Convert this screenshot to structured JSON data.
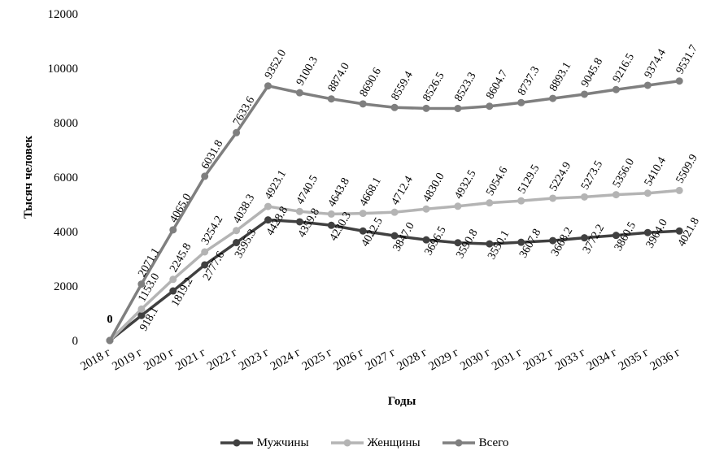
{
  "chart_data": {
    "type": "line",
    "xlabel": "Годы",
    "ylabel": "Тысяч человек",
    "ylim": [
      0,
      12000
    ],
    "yticks": [
      "0",
      "2000",
      "4000",
      "6000",
      "8000",
      "10000",
      "12000"
    ],
    "ytick_values": [
      0,
      2000,
      4000,
      6000,
      8000,
      10000,
      12000
    ],
    "categories": [
      "2018 г",
      "2019 г",
      "2020 г",
      "2021 г",
      "2022 г",
      "2023 г",
      "2024 г",
      "2025 г",
      "2026 г",
      "2027 г",
      "2028 г",
      "2029 г",
      "2030 г",
      "2031 г",
      "2032 г",
      "2033 г",
      "2034 г",
      "2035 г",
      "2036 г"
    ],
    "series": [
      {
        "name": "Мужчины",
        "color": "#404040",
        "values": [
          0,
          918.1,
          1819.2,
          2777.6,
          3595.3,
          4428.8,
          4359.8,
          4230.3,
          4022.5,
          3847.0,
          3696.5,
          3590.8,
          3550.1,
          3607.8,
          3668.2,
          3772.2,
          3860.5,
          3964.0,
          4021.8
        ],
        "labels": [
          "0",
          "918.1",
          "1819.2",
          "2777.6",
          "3595.3",
          "4428.8",
          "4359.8",
          "4230.3",
          "4022.5",
          "3847.0",
          "3696.5",
          "3590.8",
          "3550.1",
          "3607.8",
          "3668.2",
          "3772.2",
          "3860.5",
          "3964.0",
          "4021.8"
        ]
      },
      {
        "name": "Женщины",
        "color": "#b4b4b4",
        "values": [
          0,
          1153.0,
          2245.8,
          3254.2,
          4038.3,
          4923.1,
          4740.5,
          4643.8,
          4668.1,
          4712.4,
          4830.0,
          4932.5,
          5054.6,
          5129.5,
          5224.9,
          5273.5,
          5356.0,
          5410.4,
          5509.9
        ],
        "labels": [
          "",
          "1153.0",
          "2245.8",
          "3254.2",
          "4038.3",
          "4923.1",
          "4740.5",
          "4643.8",
          "4668.1",
          "4712.4",
          "4830.0",
          "4932.5",
          "5054.6",
          "5129.5",
          "5224.9",
          "5273.5",
          "5356.0",
          "5410.4",
          "5509.9"
        ]
      },
      {
        "name": "Всего",
        "color": "#7f7f7f",
        "values": [
          0,
          2071.1,
          4065.0,
          6031.8,
          7633.6,
          9352.0,
          9100.3,
          8874.0,
          8690.6,
          8559.4,
          8526.5,
          8523.3,
          8604.7,
          8737.3,
          8893.1,
          9045.8,
          9216.5,
          9374.4,
          9531.7
        ],
        "labels": [
          "0",
          "2071.1",
          "4065.0",
          "6031.8",
          "7633.6",
          "9352.0",
          "9100.3",
          "8874.0",
          "8690.6",
          "8559.4",
          "8526.5",
          "8523.3",
          "8604.7",
          "8737.3",
          "8893.1",
          "9045.8",
          "9216.5",
          "9374.4",
          "9531.7"
        ]
      }
    ],
    "legend_position": "bottom"
  }
}
